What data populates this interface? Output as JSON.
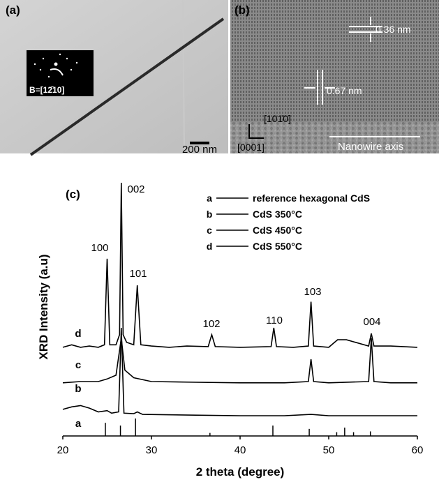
{
  "panel_a": {
    "label": "(a)",
    "zone_axis": "B=[12̄10]",
    "scale_bar": "200 nm"
  },
  "panel_b": {
    "label": "(b)",
    "spacing_1": "0.36 nm",
    "spacing_2": "0.67 nm",
    "direction_1": "[101̄0]",
    "direction_2": "[0001]",
    "axis_label": "Nanowire axis"
  },
  "chart_data": {
    "type": "line",
    "panel_label": "(c)",
    "x_label": "2 theta (degree)",
    "y_label": "XRD Intensity (a.u)",
    "xlim": [
      20,
      60
    ],
    "xticks": [
      20,
      30,
      40,
      50,
      60
    ],
    "ylim": [
      0,
      100
    ],
    "peak_labels": [
      "100",
      "002",
      "101",
      "102",
      "110",
      "103",
      "004"
    ],
    "series": [
      {
        "letter": "a",
        "name": "reference hexagonal CdS",
        "color": "#000000",
        "style": "stem",
        "x": [
          24.8,
          26.5,
          28.2,
          36.6,
          43.7,
          47.8,
          50.9,
          51.8,
          52.8,
          54.7
        ],
        "values": [
          5.2,
          4.1,
          6.9,
          1.2,
          4.1,
          2.8,
          1.5,
          3.3,
          1.5,
          1.8
        ]
      },
      {
        "letter": "b",
        "name": "CdS 350°C",
        "color": "#000000",
        "style": "line",
        "x": [
          20,
          21,
          22,
          23,
          24,
          25,
          25.5,
          26.3,
          26.6,
          26.9,
          28,
          28.4,
          29,
          35,
          40,
          45,
          48,
          50,
          55,
          60
        ],
        "values": [
          10.5,
          11.5,
          12,
          11,
          9.5,
          10,
          9,
          9.5,
          42.7,
          9,
          8.8,
          9.5,
          8.5,
          8.2,
          8,
          8,
          8.5,
          8,
          8,
          8
        ]
      },
      {
        "letter": "c",
        "name": "CdS 450°C",
        "color": "#000000",
        "style": "line",
        "x": [
          20,
          22,
          24,
          25,
          26,
          26.6,
          27,
          28,
          30,
          35,
          40,
          45,
          47.7,
          48,
          48.3,
          50,
          54.5,
          54.8,
          55.1,
          57,
          60
        ],
        "values": [
          21,
          21.5,
          21.5,
          22.5,
          24,
          38.6,
          26,
          23,
          21.5,
          21.2,
          21,
          21,
          21.5,
          30.3,
          21.5,
          21,
          21.5,
          38.6,
          21.5,
          21,
          21
        ]
      },
      {
        "letter": "d",
        "name": "CdS 550°C",
        "color": "#000000",
        "style": "line",
        "x": [
          20,
          21,
          22,
          23,
          24,
          24.7,
          25,
          25.3,
          26,
          26.4,
          26.6,
          26.8,
          27.2,
          28,
          28.4,
          28.8,
          30,
          32,
          34,
          36.4,
          36.8,
          37.2,
          40,
          43.5,
          43.8,
          44.1,
          46,
          47.7,
          48,
          48.3,
          50,
          51,
          52,
          53,
          54.5,
          54.8,
          55.1,
          57,
          60
        ],
        "values": [
          35,
          36,
          35,
          35.5,
          35,
          36,
          70,
          36,
          36,
          40,
          100,
          40,
          37,
          36,
          59.5,
          36,
          35.5,
          35,
          35.5,
          35.3,
          40,
          35.3,
          35,
          35.3,
          42.7,
          35.3,
          35,
          35.5,
          53,
          35.5,
          35,
          38,
          38,
          37,
          35.5,
          40.5,
          35.5,
          35.5,
          35
        ]
      }
    ]
  }
}
